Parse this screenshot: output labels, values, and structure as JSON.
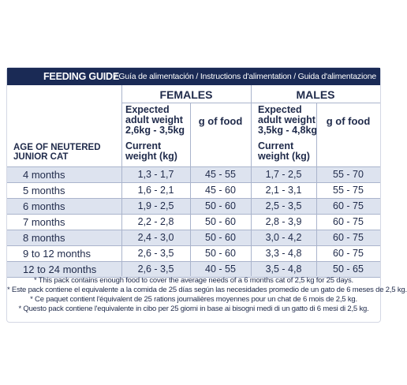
{
  "banner": {
    "title": "FEEDING GUIDE",
    "subtitle": "/ Guía de alimentación / Instructions d'alimentation / Guida d'alimentazione"
  },
  "groups": {
    "females": "FEMALES",
    "males": "MALES"
  },
  "headers": {
    "females_expected": "Expected adult weight 2,6kg - 3,5kg",
    "males_expected": "Expected adult weight 3,5kg - 4,8kg",
    "g_of_food": "g of food",
    "current_weight": "Current weight (kg)",
    "age_label": "AGE OF NEUTERED JUNIOR CAT"
  },
  "rows": [
    {
      "age": "4 months",
      "f_weight": "1,3 - 1,7",
      "f_food": "45 - 55",
      "m_weight": "1,7 - 2,5",
      "m_food": "55 - 70"
    },
    {
      "age": "5 months",
      "f_weight": "1,6 - 2,1",
      "f_food": "45 - 60",
      "m_weight": "2,1 - 3,1",
      "m_food": "55 - 75"
    },
    {
      "age": "6 months",
      "f_weight": "1,9 - 2,5",
      "f_food": "50 - 60",
      "m_weight": "2,5 - 3,5",
      "m_food": "60 - 75"
    },
    {
      "age": "7 months",
      "f_weight": "2,2 - 2,8",
      "f_food": "50 - 60",
      "m_weight": "2,8 - 3,9",
      "m_food": "60 - 75"
    },
    {
      "age": "8 months",
      "f_weight": "2,4 - 3,0",
      "f_food": "50 - 60",
      "m_weight": "3,0 - 4,2",
      "m_food": "60 - 75"
    },
    {
      "age": "9 to 12 months",
      "f_weight": "2,6 - 3,5",
      "f_food": "50 - 60",
      "m_weight": "3,3 - 4,8",
      "m_food": "60 - 75"
    },
    {
      "age": "12 to 24 months",
      "f_weight": "2,6 - 3,5",
      "f_food": "40 - 55",
      "m_weight": "3,5 - 4,8",
      "m_food": "50 - 65"
    }
  ],
  "notes": [
    "* This pack contains enough food to cover the average needs of a  6 months cat of 2,5 kg for 25 days.",
    "* Este pack contiene el equivalente a la comida de 25 días según las necesidades promedio de un gato de 6 meses de 2,5 kg.",
    "* Ce paquet contient l'équivalent de 25 rations journalières moyennes pour un chat de 6 mois de 2,5 kg.",
    "* Questo pack contiene l'equivalente in cibo per 25 giorni in base ai bisogni medi di un gatto di 6 mesi di 2,5 kg."
  ],
  "colors": {
    "banner_bg": "#1a2a55",
    "row_band": "#dde3ef",
    "text": "#1f2a4a"
  }
}
